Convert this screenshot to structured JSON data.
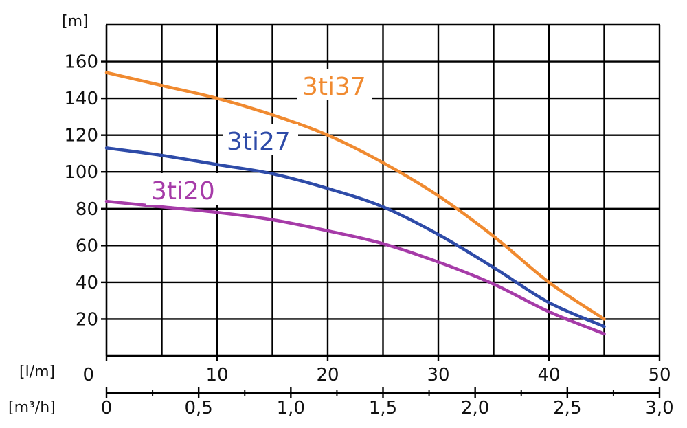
{
  "chart_data": {
    "type": "line",
    "y_unit": "[m]",
    "x_unit_primary": "[l/m]",
    "x_unit_secondary": "[m³/h]",
    "x_primary_ticks": [
      "0",
      "10",
      "20",
      "30",
      "40",
      "50"
    ],
    "x_secondary_ticks": [
      "0",
      "0,5",
      "1,0",
      "1,5",
      "2,0",
      "2,5",
      "3,0"
    ],
    "y_ticks": [
      "20",
      "40",
      "60",
      "80",
      "100",
      "120",
      "140",
      "160"
    ],
    "xlim": [
      0,
      50
    ],
    "ylim": [
      0,
      180
    ],
    "grid": true,
    "series": [
      {
        "name": "3ti37",
        "color": "#F08A30",
        "x": [
          0,
          5,
          10,
          15,
          20,
          25,
          30,
          35,
          40,
          45
        ],
        "y": [
          154,
          147,
          140,
          131,
          120,
          105,
          87,
          65,
          40,
          20
        ]
      },
      {
        "name": "3ti27",
        "color": "#2E4BA8",
        "x": [
          0,
          5,
          10,
          15,
          20,
          25,
          30,
          35,
          40,
          45
        ],
        "y": [
          113,
          109,
          104,
          99,
          91,
          81,
          66,
          48,
          29,
          16
        ]
      },
      {
        "name": "3ti20",
        "color": "#A63BA8",
        "x": [
          0,
          5,
          10,
          15,
          20,
          25,
          30,
          35,
          40,
          45
        ],
        "y": [
          84,
          81,
          78,
          74,
          68,
          61,
          51,
          39,
          24,
          12
        ]
      }
    ]
  }
}
